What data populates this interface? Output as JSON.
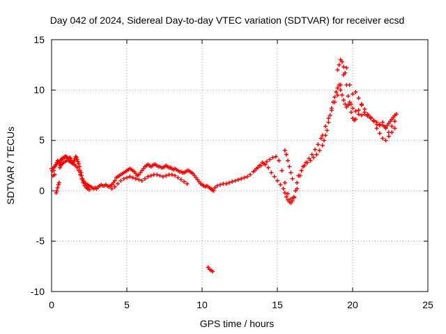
{
  "chart_data": {
    "type": "scatter",
    "title": "Day 042 of 2024, Sidereal Day-to-day VTEC variation (SDTVAR) for receiver ecsd",
    "xlabel": "GPS time / hours",
    "ylabel": "SDTVAR / TECUs",
    "xlim": [
      0,
      25
    ],
    "ylim": [
      -10,
      15
    ],
    "xticks": [
      "0",
      "5",
      "10",
      "15",
      "20",
      "25"
    ],
    "yticks": [
      "-10",
      "-5",
      "0",
      "5",
      "10",
      "15"
    ],
    "grid": true,
    "legend": "none",
    "marker": "+",
    "series_color": "#ff0000",
    "series": [
      {
        "name": "SDTVAR",
        "x": [
          0.0,
          0.05,
          0.1,
          0.15,
          0.2,
          0.25,
          0.3,
          0.35,
          0.4,
          0.45,
          0.5,
          0.55,
          0.6,
          0.65,
          0.7,
          0.75,
          0.8,
          0.85,
          0.9,
          0.95,
          1.0,
          1.05,
          1.1,
          1.15,
          1.2,
          1.25,
          1.3,
          1.35,
          1.4,
          1.45,
          1.5,
          1.55,
          1.6,
          1.65,
          1.7,
          1.75,
          1.8,
          1.85,
          1.9,
          1.95,
          2.0,
          2.05,
          2.1,
          2.15,
          2.2,
          2.25,
          2.3,
          2.35,
          2.4,
          2.45,
          2.5,
          2.6,
          2.7,
          2.8,
          2.9,
          3.0,
          3.1,
          3.2,
          3.3,
          3.4,
          3.5,
          3.6,
          3.7,
          3.8,
          3.9,
          4.0,
          4.1,
          4.2,
          4.3,
          4.4,
          4.5,
          4.6,
          4.7,
          4.8,
          4.9,
          5.0,
          5.1,
          5.2,
          5.3,
          5.4,
          5.5,
          5.6,
          5.7,
          5.8,
          5.9,
          6.0,
          6.1,
          6.2,
          6.3,
          6.4,
          6.5,
          6.6,
          6.7,
          6.8,
          6.9,
          7.0,
          7.1,
          7.2,
          7.3,
          7.4,
          7.5,
          7.6,
          7.7,
          7.8,
          7.9,
          8.0,
          8.1,
          8.2,
          8.3,
          8.4,
          8.5,
          8.6,
          8.7,
          8.8,
          8.9,
          9.0,
          9.1,
          9.2,
          9.3,
          9.4,
          9.5,
          9.6,
          9.7,
          9.8,
          9.9,
          10.0,
          10.1,
          10.2,
          10.3,
          10.4,
          10.5,
          10.6,
          10.65,
          10.75,
          10.85,
          11.0,
          11.2,
          11.4,
          11.6,
          11.8,
          12.0,
          12.2,
          12.4,
          12.6,
          12.8,
          13.0,
          13.2,
          13.4,
          13.6,
          13.8,
          14.0,
          14.2,
          14.4,
          14.6,
          14.8,
          15.0,
          15.2,
          15.4,
          15.5,
          15.6,
          15.7,
          15.8,
          15.9,
          16.0,
          16.1,
          16.2,
          16.3,
          16.4,
          16.6,
          16.8,
          17.0,
          17.2,
          17.4,
          17.6,
          17.8,
          18.0,
          18.1,
          18.2,
          18.3,
          18.4,
          18.5,
          18.6,
          18.7,
          18.8,
          18.9,
          19.0,
          19.1,
          19.2,
          19.3,
          19.4,
          19.5,
          19.6,
          19.7,
          19.8,
          19.9,
          20.0,
          20.2,
          20.4,
          20.6,
          20.8,
          21.0,
          21.2,
          21.4,
          21.6,
          21.8,
          22.0,
          22.1,
          22.2,
          22.3,
          22.4,
          22.5,
          22.6,
          22.7,
          22.8,
          22.9,
          0.1,
          0.15,
          0.2,
          0.3,
          0.35,
          0.4,
          0.45,
          0.5,
          0.55,
          0.6,
          0.65,
          0.7,
          0.8,
          0.9,
          1.0,
          1.1,
          1.2,
          1.3,
          1.4,
          1.5,
          1.6,
          1.7,
          1.8,
          1.9,
          2.0,
          2.1,
          2.2,
          2.3,
          2.4,
          2.5,
          4.0,
          4.2,
          4.4,
          4.6,
          4.8,
          5.0,
          5.2,
          5.4,
          5.6,
          5.8,
          6.0,
          6.2,
          6.4,
          6.6,
          6.8,
          7.0,
          7.2,
          7.4,
          7.6,
          7.8,
          8.0,
          8.2,
          8.4,
          8.6,
          8.8,
          9.0,
          13.5,
          13.7,
          13.9,
          14.1,
          14.3,
          14.5,
          14.7,
          14.9,
          15.1,
          15.3,
          15.5,
          15.7,
          15.9,
          16.1,
          16.3,
          16.5,
          16.7,
          16.9,
          17.1,
          17.3,
          17.5,
          17.7,
          17.9,
          18.0,
          18.2,
          18.4,
          18.6,
          18.8,
          19.0,
          19.2,
          19.4,
          19.6,
          19.8,
          20.0,
          20.2,
          20.4,
          20.6,
          20.8,
          21.0,
          21.2,
          21.4,
          21.6,
          21.8,
          22.0,
          22.2,
          22.4,
          22.6,
          22.8,
          15.5,
          15.6,
          15.7,
          15.8,
          15.9,
          16.0,
          19.0,
          19.1,
          19.2,
          19.3,
          19.4,
          19.5,
          19.6,
          19.7,
          19.8,
          19.9,
          20.0,
          20.1,
          20.2,
          20.4,
          20.6,
          20.8,
          21.0,
          21.2,
          21.4,
          21.6,
          21.8,
          22.0,
          22.2,
          22.4,
          22.6,
          22.8,
          10.4,
          10.5,
          10.6,
          10.7
        ],
        "y": [
          2.2,
          2.0,
          1.5,
          2.3,
          2.4,
          2.5,
          2.6,
          2.8,
          3.0,
          2.9,
          2.7,
          2.8,
          3.0,
          3.1,
          3.2,
          3.2,
          3.3,
          3.3,
          3.4,
          3.4,
          3.3,
          3.3,
          3.2,
          3.2,
          3.3,
          3.2,
          3.0,
          2.8,
          2.8,
          2.9,
          3.0,
          3.2,
          3.4,
          3.3,
          3.1,
          2.9,
          2.7,
          2.4,
          2.0,
          1.8,
          1.5,
          1.2,
          1.0,
          0.9,
          0.8,
          0.7,
          0.6,
          0.5,
          0.6,
          0.5,
          0.4,
          0.4,
          0.3,
          0.2,
          0.3,
          0.2,
          0.4,
          0.5,
          0.6,
          0.5,
          0.5,
          0.6,
          0.5,
          0.4,
          0.5,
          0.6,
          0.8,
          1.0,
          1.3,
          1.4,
          1.5,
          1.6,
          1.7,
          1.8,
          1.9,
          2.0,
          2.1,
          2.2,
          2.1,
          2.0,
          1.9,
          1.7,
          1.5,
          1.6,
          1.8,
          2.0,
          2.2,
          2.4,
          2.5,
          2.6,
          2.5,
          2.4,
          2.5,
          2.6,
          2.6,
          2.5,
          2.4,
          2.4,
          2.3,
          2.3,
          2.4,
          2.5,
          2.4,
          2.3,
          2.3,
          2.2,
          2.1,
          2.2,
          2.1,
          2.0,
          1.9,
          1.9,
          1.8,
          1.8,
          1.9,
          2.0,
          2.0,
          1.9,
          1.8,
          1.7,
          1.5,
          1.3,
          1.1,
          0.9,
          0.7,
          0.6,
          0.5,
          0.4,
          0.5,
          0.4,
          0.3,
          0.2,
          0.1,
          0.0,
          0.3,
          0.5,
          0.6,
          0.7,
          0.7,
          0.8,
          0.9,
          1.0,
          1.1,
          1.2,
          1.3,
          1.4,
          1.6,
          1.9,
          2.2,
          2.5,
          2.8,
          2.6,
          2.3,
          1.8,
          1.4,
          1.0,
          0.6,
          0.2,
          -0.2,
          -0.6,
          -0.9,
          -1.1,
          -1.2,
          -1.0,
          -0.6,
          0.0,
          0.8,
          1.5,
          2.0,
          2.5,
          2.8,
          3.0,
          3.3,
          3.6,
          4.0,
          4.5,
          5.0,
          5.5,
          6.0,
          6.8,
          7.5,
          8.2,
          8.8,
          9.3,
          9.8,
          10.2,
          10.5,
          10.0,
          9.5,
          9.0,
          8.6,
          8.3,
          8.5,
          8.8,
          8.6,
          8.2,
          7.9,
          7.6,
          7.5,
          7.6,
          7.4,
          7.2,
          7.0,
          6.8,
          6.6,
          6.5,
          6.4,
          6.3,
          6.5,
          6.7,
          6.9,
          7.1,
          7.3,
          7.5,
          7.6,
          1.5,
          2.0,
          1.6,
          -0.2,
          0.0,
          0.3,
          0.6,
          0.8,
          2.3,
          2.5,
          2.6,
          2.7,
          2.8,
          2.9,
          3.0,
          3.0,
          2.9,
          2.8,
          2.7,
          2.6,
          2.5,
          2.3,
          2.0,
          1.6,
          1.2,
          0.8,
          0.5,
          0.3,
          0.2,
          0.1,
          0.2,
          0.4,
          0.7,
          1.0,
          1.2,
          1.3,
          1.4,
          1.3,
          1.2,
          1.1,
          1.0,
          1.2,
          1.4,
          1.5,
          1.6,
          1.6,
          1.5,
          1.4,
          1.5,
          1.6,
          1.6,
          1.5,
          1.3,
          1.1,
          0.9,
          0.7,
          2.0,
          2.3,
          2.5,
          2.7,
          2.9,
          3.1,
          3.3,
          3.4,
          3.0,
          2.0,
          0.8,
          -0.3,
          -0.8,
          -0.7,
          0.2,
          1.5,
          2.4,
          2.8,
          3.2,
          3.6,
          4.1,
          4.6,
          5.2,
          5.5,
          6.4,
          7.2,
          8.0,
          8.8,
          9.5,
          10.5,
          11.5,
          12.2,
          10.5,
          9.6,
          9.8,
          9.2,
          8.6,
          7.8,
          7.5,
          7.3,
          6.9,
          6.2,
          5.7,
          5.2,
          5.0,
          5.4,
          5.8,
          6.2,
          4.0,
          3.6,
          3.0,
          2.4,
          1.8,
          1.2,
          12.0,
          12.5,
          13.0,
          12.8,
          12.3,
          11.7,
          10.5,
          9.4,
          8.6,
          7.8,
          7.2,
          7.0,
          7.1,
          8.0,
          8.5,
          8.1,
          7.6,
          7.2,
          6.9,
          6.6,
          6.5,
          6.8,
          6.2,
          5.8,
          6.4,
          6.9,
          -7.6,
          -7.8,
          -7.9,
          -8.0
        ]
      }
    ]
  }
}
